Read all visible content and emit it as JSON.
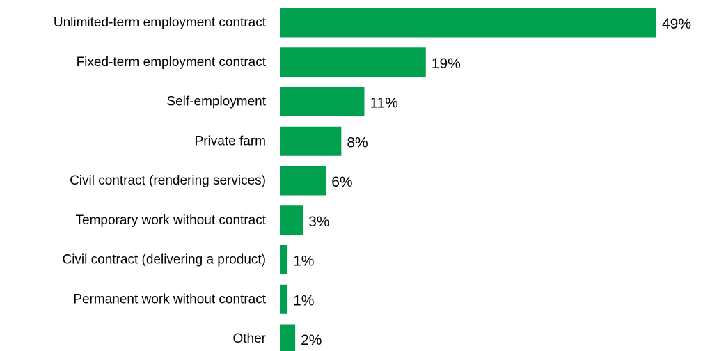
{
  "chart_data": {
    "type": "bar",
    "orientation": "horizontal",
    "categories": [
      "Unlimited-term employment contract",
      "Fixed-term employment contract",
      "Self-employment",
      "Private farm",
      "Civil contract (rendering services)",
      "Temporary work without contract",
      "Civil contract (delivering a product)",
      "Permanent work without contract",
      "Other"
    ],
    "values": [
      49,
      19,
      11,
      8,
      6,
      3,
      1,
      1,
      2
    ],
    "value_labels": [
      "49%",
      "19%",
      "11%",
      "8%",
      "6%",
      "3%",
      "1%",
      "1%",
      "2%"
    ],
    "title": "",
    "xlabel": "",
    "ylabel": "",
    "xlim": [
      0,
      49
    ],
    "grid": false,
    "bar_color": "#00A04F"
  }
}
